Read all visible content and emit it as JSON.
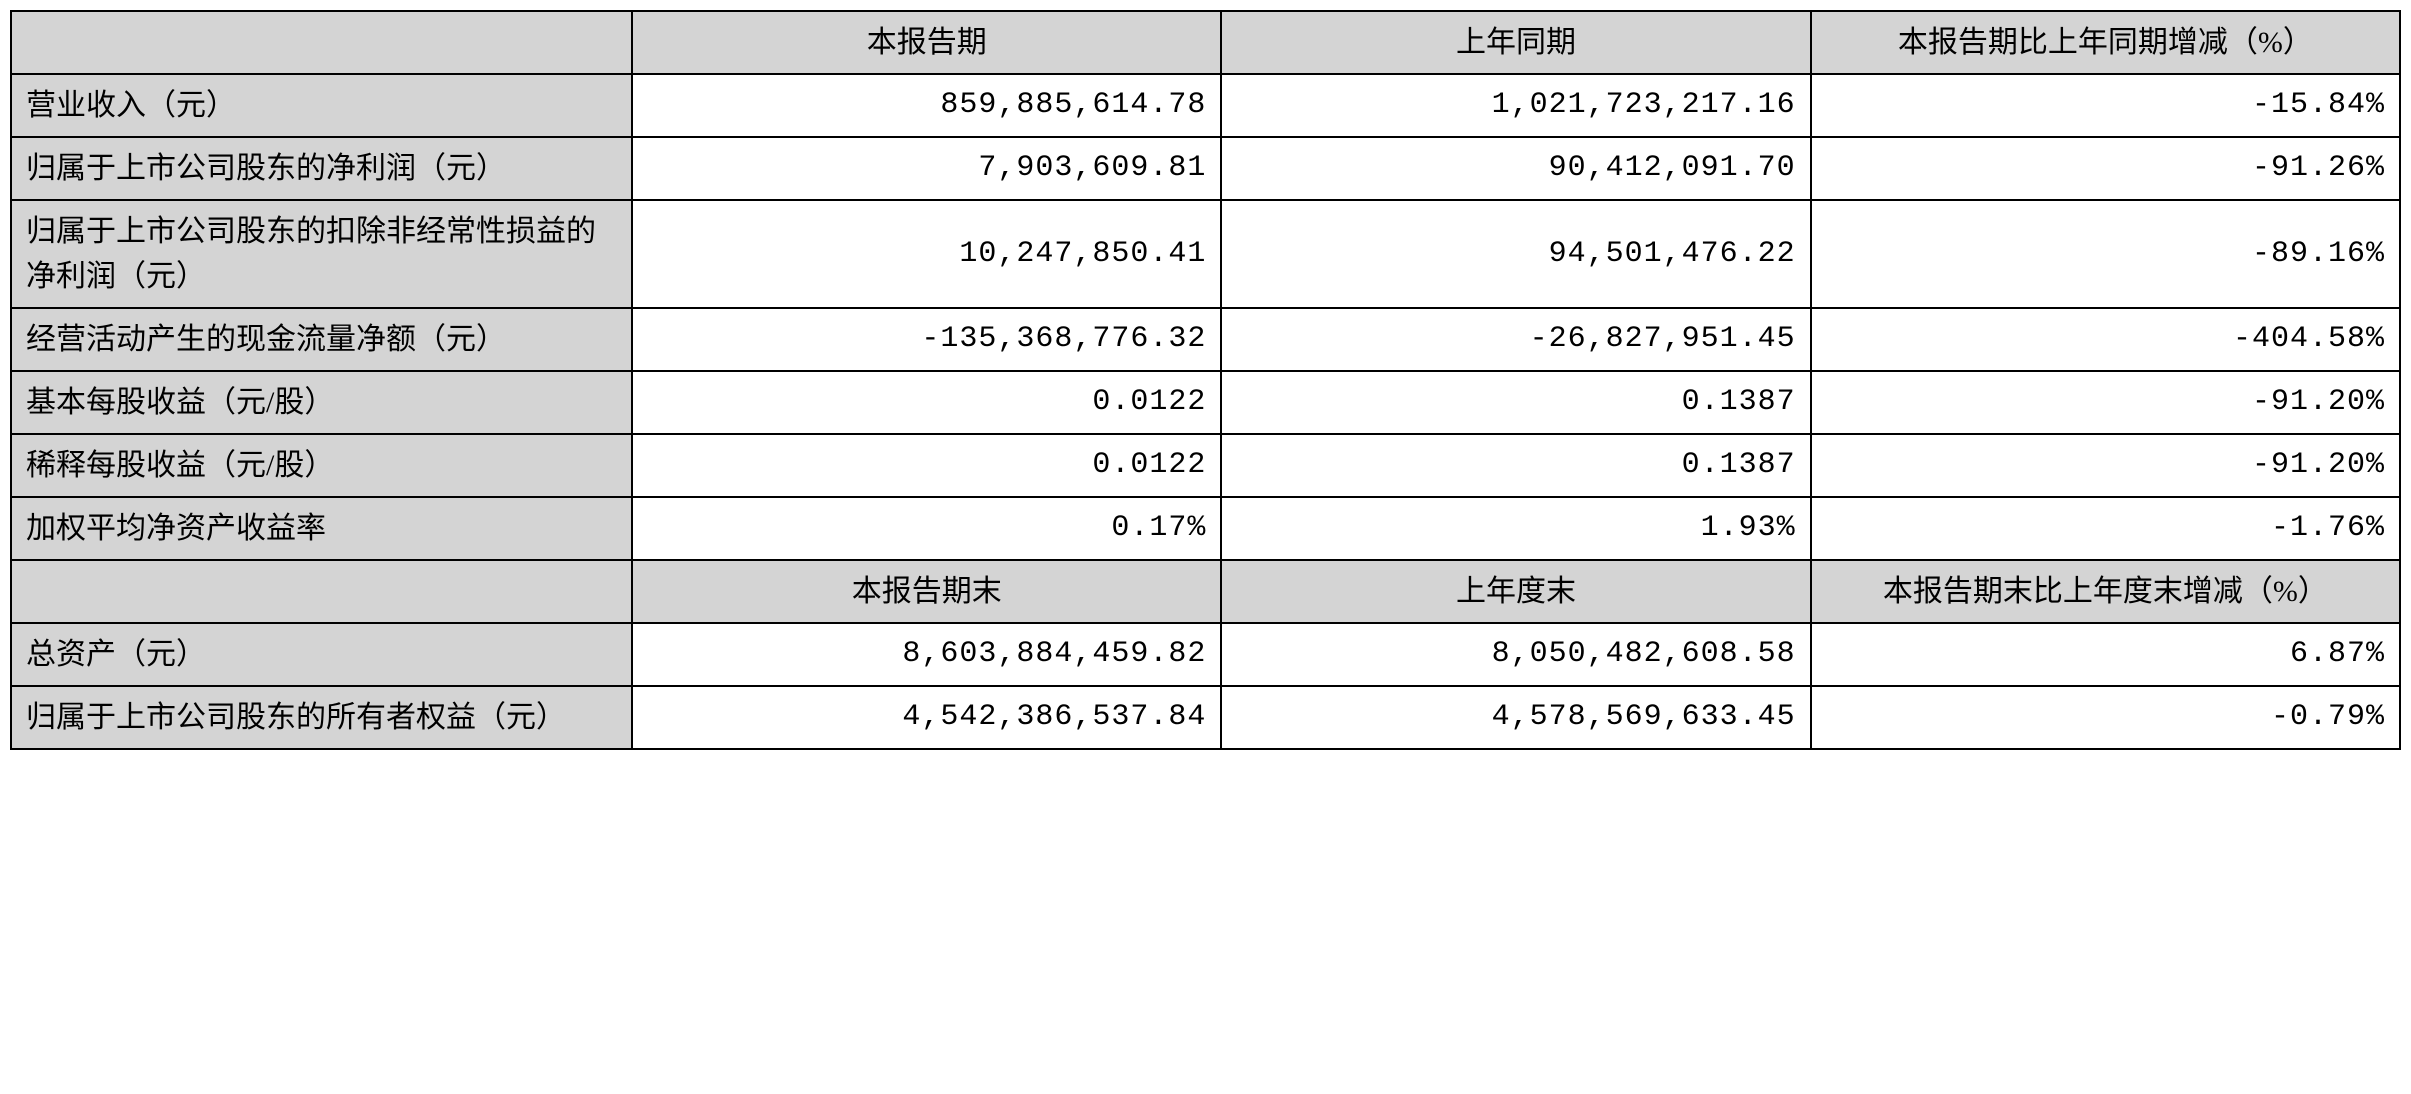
{
  "table": {
    "type": "table",
    "background_color": "#ffffff",
    "header_bg_color": "#d4d4d4",
    "label_bg_color": "#d4d4d4",
    "border_color": "#000000",
    "text_color": "#000000",
    "font_size": 30,
    "header_row_1": {
      "blank": "",
      "col1": "本报告期",
      "col2": "上年同期",
      "col3": "本报告期比上年同期增减（%）"
    },
    "rows_section_1": [
      {
        "label": "营业收入（元）",
        "current": "859,885,614.78",
        "prior": "1,021,723,217.16",
        "change": "-15.84%"
      },
      {
        "label": "归属于上市公司股东的净利润（元）",
        "current": "7,903,609.81",
        "prior": "90,412,091.70",
        "change": "-91.26%"
      },
      {
        "label": "归属于上市公司股东的扣除非经常性损益的净利润（元）",
        "current": "10,247,850.41",
        "prior": "94,501,476.22",
        "change": "-89.16%"
      },
      {
        "label": "经营活动产生的现金流量净额（元）",
        "current": "-135,368,776.32",
        "prior": "-26,827,951.45",
        "change": "-404.58%"
      },
      {
        "label": "基本每股收益（元/股）",
        "current": "0.0122",
        "prior": "0.1387",
        "change": "-91.20%"
      },
      {
        "label": "稀释每股收益（元/股）",
        "current": "0.0122",
        "prior": "0.1387",
        "change": "-91.20%"
      },
      {
        "label": "加权平均净资产收益率",
        "current": "0.17%",
        "prior": "1.93%",
        "change": "-1.76%"
      }
    ],
    "header_row_2": {
      "blank": "",
      "col1": "本报告期末",
      "col2": "上年度末",
      "col3": "本报告期末比上年度末增减（%）"
    },
    "rows_section_2": [
      {
        "label": "总资产（元）",
        "current": "8,603,884,459.82",
        "prior": "8,050,482,608.58",
        "change": "6.87%"
      },
      {
        "label": "归属于上市公司股东的所有者权益（元）",
        "current": "4,542,386,537.84",
        "prior": "4,578,569,633.45",
        "change": "-0.79%"
      }
    ]
  }
}
